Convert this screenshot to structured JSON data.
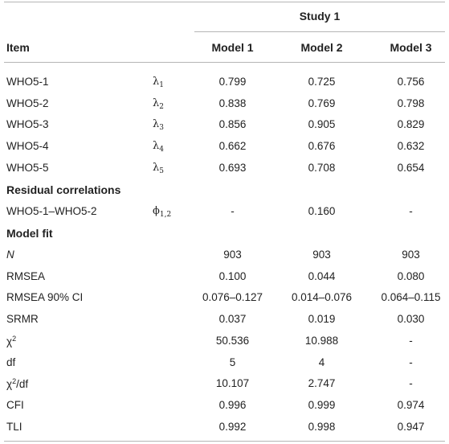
{
  "header": {
    "group_label": "Study 1",
    "item_label": "Item",
    "models": [
      "Model 1",
      "Model 2",
      "Model 3"
    ]
  },
  "loadings": [
    {
      "item": "WHO5-1",
      "sym": "λ",
      "sub": "1",
      "vals": [
        "0.799",
        "0.725",
        "0.756"
      ]
    },
    {
      "item": "WHO5-2",
      "sym": "λ",
      "sub": "2",
      "vals": [
        "0.838",
        "0.769",
        "0.798"
      ]
    },
    {
      "item": "WHO5-3",
      "sym": "λ",
      "sub": "3",
      "vals": [
        "0.856",
        "0.905",
        "0.829"
      ]
    },
    {
      "item": "WHO5-4",
      "sym": "λ",
      "sub": "4",
      "vals": [
        "0.662",
        "0.676",
        "0.632"
      ]
    },
    {
      "item": "WHO5-5",
      "sym": "λ",
      "sub": "5",
      "vals": [
        "0.693",
        "0.708",
        "0.654"
      ]
    }
  ],
  "residual": {
    "section_label": "Residual correlations",
    "item": "WHO5-1–WHO5-2",
    "sym": "ϕ",
    "sub": "1,2",
    "vals": [
      "-",
      "0.160",
      "-"
    ]
  },
  "fit": {
    "section_label": "Model fit",
    "rows": [
      {
        "label": "N",
        "vals": [
          "903",
          "903",
          "903"
        ]
      },
      {
        "label": "RMSEA",
        "vals": [
          "0.100",
          "0.044",
          "0.080"
        ]
      },
      {
        "label": "RMSEA 90% CI",
        "vals": [
          "0.076–0.127",
          "0.014–0.076",
          "0.064–0.115"
        ]
      },
      {
        "label": "SRMR",
        "vals": [
          "0.037",
          "0.019",
          "0.030"
        ]
      },
      {
        "label": "χ",
        "sup": "2",
        "vals": [
          "50.536",
          "10.988",
          "-"
        ]
      },
      {
        "label": "df",
        "vals": [
          "5",
          "4",
          "-"
        ]
      },
      {
        "label": "χ",
        "sup": "2",
        "suffix": "/df",
        "vals": [
          "10.107",
          "2.747",
          "-"
        ]
      },
      {
        "label": "CFI",
        "vals": [
          "0.996",
          "0.999",
          "0.974"
        ]
      },
      {
        "label": "TLI",
        "vals": [
          "0.992",
          "0.998",
          "0.947"
        ]
      }
    ]
  }
}
